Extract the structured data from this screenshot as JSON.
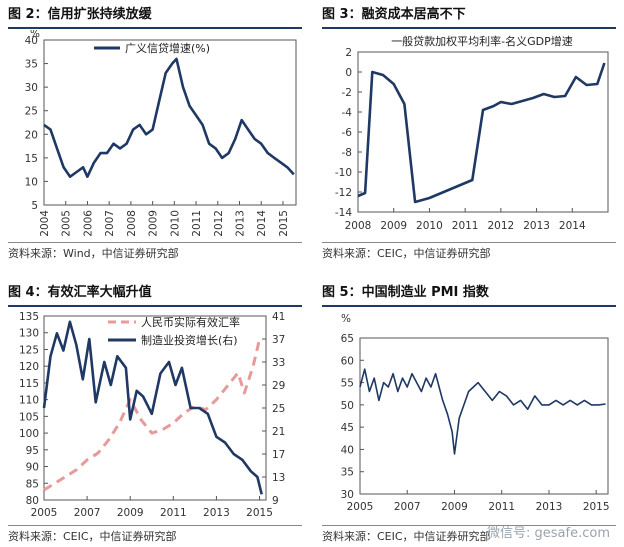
{
  "panels": [
    {
      "title": "图 2：信用扩张持续放缓",
      "source": "资料来源：Wind，中信证券研究部"
    },
    {
      "title": "图 3：融资成本居高不下",
      "source": "资料来源：CEIC，中信证券研究部"
    },
    {
      "title": "图 4：有效汇率大幅升值",
      "source": "资料来源：CEIC，中信证券研究部"
    },
    {
      "title": "图 5：中国制造业 PMI 指数",
      "source": "资料来源：CEIC，中信证券研究部"
    }
  ],
  "watermark": "微信号: gesafe.com",
  "chart_data": [
    {
      "type": "line",
      "title": "",
      "unit": "%",
      "ylim": [
        5,
        40
      ],
      "yticks": [
        5,
        10,
        15,
        20,
        25,
        30,
        35,
        40
      ],
      "xlim": [
        2004,
        2015.6
      ],
      "xticks": [
        "2004",
        "2005",
        "2006",
        "2007",
        "2008",
        "2009",
        "2010",
        "2011",
        "2012",
        "2013",
        "2014",
        "2015"
      ],
      "legend": "top",
      "series": [
        {
          "name": "广义信贷增速(%)",
          "x": [
            2004.0,
            2004.3,
            2004.6,
            2004.9,
            2005.2,
            2005.5,
            2005.8,
            2006.0,
            2006.3,
            2006.6,
            2006.9,
            2007.2,
            2007.5,
            2007.8,
            2008.1,
            2008.4,
            2008.7,
            2009.0,
            2009.3,
            2009.6,
            2009.9,
            2010.1,
            2010.4,
            2010.7,
            2011.0,
            2011.3,
            2011.6,
            2011.9,
            2012.2,
            2012.5,
            2012.8,
            2013.1,
            2013.4,
            2013.7,
            2014.0,
            2014.3,
            2014.6,
            2014.9,
            2015.2,
            2015.5
          ],
          "y": [
            22,
            21,
            17,
            13,
            11,
            12,
            13,
            11,
            14,
            16,
            16,
            18,
            17,
            18,
            21,
            22,
            20,
            21,
            27,
            33,
            35,
            36,
            30,
            26,
            24,
            22,
            18,
            17,
            15,
            16,
            19,
            23,
            21,
            19,
            18,
            16,
            15,
            14,
            13,
            11.5
          ]
        }
      ]
    },
    {
      "type": "line",
      "title": "",
      "ylim": [
        -14,
        2
      ],
      "yticks": [
        -14,
        -12,
        -10,
        -8,
        -6,
        -4,
        -2,
        0,
        2
      ],
      "xlim": [
        2008,
        2015
      ],
      "xticks": [
        "2008",
        "2009",
        "2010",
        "2011",
        "2012",
        "2013",
        "2014"
      ],
      "legend": "top",
      "series": [
        {
          "name": "一般贷款加权平均利率-名义GDP增速",
          "x": [
            2008.0,
            2008.2,
            2008.4,
            2008.7,
            2009.0,
            2009.3,
            2009.6,
            2010.0,
            2010.4,
            2010.8,
            2011.2,
            2011.5,
            2011.8,
            2012.0,
            2012.3,
            2012.6,
            2012.9,
            2013.2,
            2013.5,
            2013.8,
            2014.1,
            2014.4,
            2014.7,
            2014.9
          ],
          "y": [
            -12.4,
            -12.1,
            0.0,
            -0.3,
            -1.2,
            -3.2,
            -13.0,
            -12.6,
            -12.0,
            -11.4,
            -10.8,
            -3.8,
            -3.4,
            -3.0,
            -3.2,
            -2.9,
            -2.6,
            -2.2,
            -2.5,
            -2.4,
            -0.5,
            -1.3,
            -1.2,
            0.9
          ]
        }
      ]
    },
    {
      "type": "line",
      "title": "",
      "ylim_left": [
        80,
        135
      ],
      "yticks_left": [
        80,
        85,
        90,
        95,
        100,
        105,
        110,
        115,
        120,
        125,
        130,
        135
      ],
      "ylim_right": [
        9,
        41
      ],
      "yticks_right": [
        9,
        13,
        17,
        21,
        25,
        29,
        33,
        37,
        41
      ],
      "xlim": [
        2005,
        2015.3
      ],
      "xticks": [
        "2005",
        "2007",
        "2009",
        "2011",
        "2013",
        "2015"
      ],
      "legend": "top-left",
      "series": [
        {
          "name": "人民币实际有效汇率",
          "axis": "left",
          "style": "dashed",
          "x": [
            2005.0,
            2005.5,
            2006.0,
            2006.5,
            2007.0,
            2007.5,
            2008.0,
            2008.5,
            2009.0,
            2009.5,
            2010.0,
            2010.5,
            2011.0,
            2011.5,
            2012.0,
            2012.5,
            2013.0,
            2013.5,
            2014.0,
            2014.3,
            2014.7,
            2015.0
          ],
          "y": [
            83,
            85,
            87,
            89,
            92,
            94,
            98,
            103,
            110,
            104,
            100,
            101,
            103,
            106,
            108,
            107,
            110,
            114,
            118,
            112,
            120,
            128
          ]
        },
        {
          "name": "制造业投资增长(右)",
          "axis": "right",
          "style": "solid",
          "x": [
            2005.0,
            2005.3,
            2005.6,
            2005.9,
            2006.2,
            2006.5,
            2006.8,
            2007.1,
            2007.4,
            2007.8,
            2008.1,
            2008.4,
            2008.8,
            2009.0,
            2009.3,
            2009.6,
            2010.0,
            2010.4,
            2010.8,
            2011.1,
            2011.4,
            2011.8,
            2012.2,
            2012.6,
            2013.0,
            2013.4,
            2013.8,
            2014.2,
            2014.6,
            2014.9,
            2015.1
          ],
          "y": [
            25,
            34,
            38,
            35,
            40,
            36,
            30,
            37,
            26,
            33,
            29,
            34,
            32,
            23,
            28,
            27,
            24,
            31,
            33,
            29,
            32,
            25,
            25,
            24,
            20,
            19,
            17,
            16,
            14,
            13,
            10
          ]
        }
      ]
    },
    {
      "type": "line",
      "title": "",
      "unit": "%",
      "ylim": [
        30,
        65
      ],
      "yticks": [
        30,
        35,
        40,
        45,
        50,
        55,
        60,
        65
      ],
      "xlim": [
        2005,
        2015.5
      ],
      "xticks": [
        "2005",
        "2007",
        "2009",
        "2011",
        "2013",
        "2015"
      ],
      "series": [
        {
          "name": "PMI",
          "x": [
            2005.0,
            2005.2,
            2005.4,
            2005.6,
            2005.8,
            2006.0,
            2006.2,
            2006.4,
            2006.6,
            2006.8,
            2007.0,
            2007.2,
            2007.4,
            2007.6,
            2007.8,
            2008.0,
            2008.2,
            2008.4,
            2008.5,
            2008.7,
            2008.9,
            2009.0,
            2009.2,
            2009.4,
            2009.6,
            2009.8,
            2010.0,
            2010.3,
            2010.6,
            2010.9,
            2011.2,
            2011.5,
            2011.8,
            2012.1,
            2012.4,
            2012.7,
            2013.0,
            2013.3,
            2013.6,
            2013.9,
            2014.2,
            2014.5,
            2014.8,
            2015.1,
            2015.4
          ],
          "y": [
            54,
            58,
            53,
            56,
            51,
            55,
            54,
            57,
            53,
            56,
            54,
            57,
            55,
            53,
            56,
            54,
            57,
            53,
            51,
            48,
            44,
            39,
            47,
            50,
            53,
            54,
            55,
            53,
            51,
            53,
            52,
            50,
            51,
            49,
            52,
            50,
            50,
            51,
            50,
            51,
            50,
            51,
            50,
            50,
            50.2
          ]
        }
      ]
    }
  ]
}
